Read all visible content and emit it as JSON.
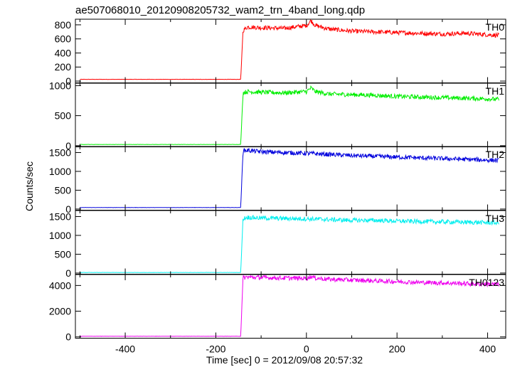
{
  "title": "ae507068010_20120908205732_wam2_trn_4band_long.qdp",
  "xlabel": "Time [sec] 0 = 2012/09/08 20:57:32",
  "ylabel": "Counts/sec",
  "chart_data": [
    {
      "type": "line",
      "name": "TH0",
      "color": "#ff0000",
      "xlim": [
        -510,
        440
      ],
      "ylim": [
        -25,
        880
      ],
      "yticks": [
        0,
        200,
        400,
        600,
        800
      ],
      "xticks": [
        -400,
        -200,
        0,
        200,
        400
      ],
      "x": [
        -500,
        -145,
        -140,
        -130,
        -100,
        -50,
        0,
        10,
        20,
        50,
        100,
        150,
        200,
        250,
        300,
        350,
        400,
        425
      ],
      "values": [
        25,
        25,
        720,
        770,
        760,
        750,
        790,
        860,
        790,
        740,
        710,
        700,
        690,
        680,
        670,
        680,
        660,
        650
      ]
    },
    {
      "type": "line",
      "name": "TH1",
      "color": "#00ee00",
      "xlim": [
        -510,
        440
      ],
      "ylim": [
        -20,
        1040
      ],
      "yticks": [
        0,
        500,
        1000
      ],
      "xticks": [
        -400,
        -200,
        0,
        200,
        400
      ],
      "x": [
        -500,
        -145,
        -140,
        -130,
        -100,
        -50,
        0,
        10,
        20,
        50,
        100,
        150,
        200,
        250,
        300,
        350,
        400,
        425
      ],
      "values": [
        20,
        20,
        880,
        900,
        890,
        880,
        900,
        960,
        900,
        860,
        850,
        840,
        820,
        810,
        800,
        790,
        780,
        770
      ]
    },
    {
      "type": "line",
      "name": "TH2",
      "color": "#0000dd",
      "xlim": [
        -510,
        440
      ],
      "ylim": [
        -30,
        1660
      ],
      "yticks": [
        0,
        500,
        1000,
        1500
      ],
      "xticks": [
        -400,
        -200,
        0,
        200,
        400
      ],
      "x": [
        -500,
        -145,
        -140,
        -130,
        -100,
        -50,
        0,
        50,
        100,
        150,
        200,
        250,
        300,
        350,
        400,
        425
      ],
      "values": [
        40,
        40,
        1550,
        1560,
        1520,
        1500,
        1480,
        1450,
        1420,
        1400,
        1380,
        1360,
        1340,
        1320,
        1300,
        1290
      ]
    },
    {
      "type": "line",
      "name": "TH3",
      "color": "#00eeee",
      "xlim": [
        -510,
        440
      ],
      "ylim": [
        -30,
        1660
      ],
      "yticks": [
        0,
        500,
        1000,
        1500
      ],
      "xticks": [
        -400,
        -200,
        0,
        200,
        400
      ],
      "x": [
        -500,
        -145,
        -140,
        -130,
        -100,
        -50,
        0,
        50,
        100,
        150,
        200,
        250,
        300,
        350,
        400,
        425
      ],
      "values": [
        15,
        15,
        1450,
        1480,
        1460,
        1450,
        1440,
        1420,
        1400,
        1400,
        1380,
        1370,
        1360,
        1350,
        1340,
        1330
      ]
    },
    {
      "type": "line",
      "name": "TH0123",
      "color": "#ee00ee",
      "xlim": [
        -510,
        440
      ],
      "ylim": [
        -100,
        4850
      ],
      "yticks": [
        0,
        2000,
        4000
      ],
      "xticks": [
        -400,
        -200,
        0,
        200,
        400
      ],
      "x": [
        -500,
        -145,
        -140,
        -130,
        -100,
        -50,
        0,
        10,
        20,
        50,
        100,
        150,
        200,
        250,
        300,
        350,
        400,
        425
      ],
      "values": [
        50,
        50,
        4600,
        4650,
        4620,
        4580,
        4560,
        4700,
        4580,
        4480,
        4420,
        4360,
        4300,
        4240,
        4200,
        4150,
        4100,
        4080
      ]
    }
  ]
}
